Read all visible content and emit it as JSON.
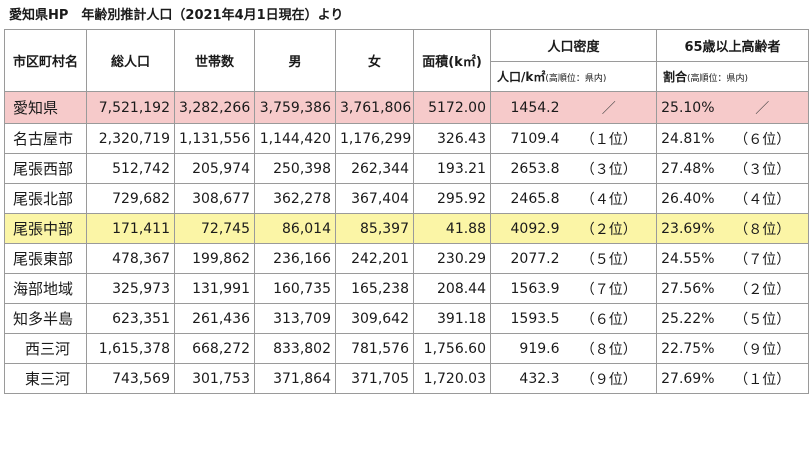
{
  "caption": "愛知県HP　年齢別推計人口（2021年4月1日現在）より",
  "headers": {
    "area": "市区町村名",
    "total": "総人口",
    "households": "世帯数",
    "male": "男",
    "female": "女",
    "size": "面積(k㎡)",
    "density_group": "人口密度",
    "density_unit": "人口/k㎡",
    "density_note": "(高順位：県内)",
    "elderly_group": "65歳以上高齢者",
    "elderly_unit": "割合",
    "elderly_note": "(高順位：県内)"
  },
  "rows": [
    {
      "name": "愛知県",
      "total": "7,521,192",
      "households": "3,282,266",
      "male": "3,759,386",
      "female": "3,761,806",
      "area": "5172.00",
      "density": "1454.2",
      "density_rank": "／",
      "elderly": "25.10%",
      "elderly_rank": "／"
    },
    {
      "name": "名古屋市",
      "total": "2,320,719",
      "households": "1,131,556",
      "male": "1,144,420",
      "female": "1,176,299",
      "area": "326.43",
      "density": "7109.4",
      "density_rank": "（１位）",
      "elderly": "24.81%",
      "elderly_rank": "（６位）"
    },
    {
      "name": "尾張西部",
      "total": "512,742",
      "households": "205,974",
      "male": "250,398",
      "female": "262,344",
      "area": "193.21",
      "density": "2653.8",
      "density_rank": "（３位）",
      "elderly": "27.48%",
      "elderly_rank": "（３位）"
    },
    {
      "name": "尾張北部",
      "total": "729,682",
      "households": "308,677",
      "male": "362,278",
      "female": "367,404",
      "area": "295.92",
      "density": "2465.8",
      "density_rank": "（４位）",
      "elderly": "26.40%",
      "elderly_rank": "（４位）"
    },
    {
      "name": "尾張中部",
      "total": "171,411",
      "households": "72,745",
      "male": "86,014",
      "female": "85,397",
      "area": "41.88",
      "density": "4092.9",
      "density_rank": "（２位）",
      "elderly": "23.69%",
      "elderly_rank": "（８位）"
    },
    {
      "name": "尾張東部",
      "total": "478,367",
      "households": "199,862",
      "male": "236,166",
      "female": "242,201",
      "area": "230.29",
      "density": "2077.2",
      "density_rank": "（５位）",
      "elderly": "24.55%",
      "elderly_rank": "（７位）"
    },
    {
      "name": "海部地域",
      "total": "325,973",
      "households": "131,991",
      "male": "160,735",
      "female": "165,238",
      "area": "208.44",
      "density": "1563.9",
      "density_rank": "（７位）",
      "elderly": "27.56%",
      "elderly_rank": "（２位）"
    },
    {
      "name": "知多半島",
      "total": "623,351",
      "households": "261,436",
      "male": "313,709",
      "female": "309,642",
      "area": "391.18",
      "density": "1593.5",
      "density_rank": "（６位）",
      "elderly": "25.22%",
      "elderly_rank": "（５位）"
    },
    {
      "name": "西三河",
      "total": "1,615,378",
      "households": "668,272",
      "male": "833,802",
      "female": "781,576",
      "area": "1,756.60",
      "density": "919.6",
      "density_rank": "（８位）",
      "elderly": "22.75%",
      "elderly_rank": "（９位）"
    },
    {
      "name": "東三河",
      "total": "743,569",
      "households": "301,753",
      "male": "371,864",
      "female": "371,705",
      "area": "1,720.03",
      "density": "432.3",
      "density_rank": "（９位）",
      "elderly": "27.69%",
      "elderly_rank": "（１位）"
    }
  ],
  "colors": {
    "prefecture_row": "#f6caca",
    "highlight_row": "#fbf5a6",
    "border": "#9a9a9a"
  }
}
